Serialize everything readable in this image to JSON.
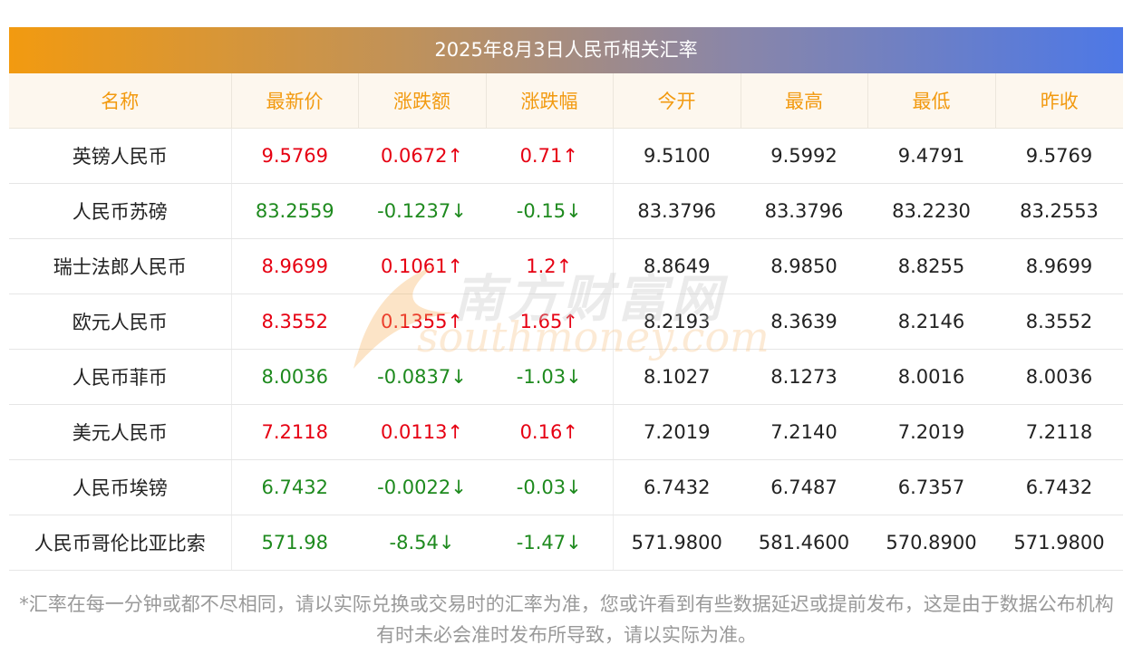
{
  "title": "2025年8月3日人民币相关汇率",
  "headers": [
    "名称",
    "最新价",
    "涨跌额",
    "涨跌幅",
    "今开",
    "最高",
    "最低",
    "昨收"
  ],
  "rows": [
    {
      "name": "英镑人民币",
      "latest": "9.5769",
      "change": "0.0672↑",
      "pct": "0.71↑",
      "open": "9.5100",
      "high": "9.5992",
      "low": "9.4791",
      "prev": "9.5769",
      "dir": "up"
    },
    {
      "name": "人民币苏磅",
      "latest": "83.2559",
      "change": "-0.1237↓",
      "pct": "-0.15↓",
      "open": "83.3796",
      "high": "83.3796",
      "low": "83.2230",
      "prev": "83.2553",
      "dir": "down"
    },
    {
      "name": "瑞士法郎人民币",
      "latest": "8.9699",
      "change": "0.1061↑",
      "pct": "1.2↑",
      "open": "8.8649",
      "high": "8.9850",
      "low": "8.8255",
      "prev": "8.9699",
      "dir": "up"
    },
    {
      "name": "欧元人民币",
      "latest": "8.3552",
      "change": "0.1355↑",
      "pct": "1.65↑",
      "open": "8.2193",
      "high": "8.3639",
      "low": "8.2146",
      "prev": "8.3552",
      "dir": "up"
    },
    {
      "name": "人民币菲币",
      "latest": "8.0036",
      "change": "-0.0837↓",
      "pct": "-1.03↓",
      "open": "8.1027",
      "high": "8.1273",
      "low": "8.0016",
      "prev": "8.0036",
      "dir": "down"
    },
    {
      "name": "美元人民币",
      "latest": "7.2118",
      "change": "0.0113↑",
      "pct": "0.16↑",
      "open": "7.2019",
      "high": "7.2140",
      "low": "7.2019",
      "prev": "7.2118",
      "dir": "up"
    },
    {
      "name": "人民币埃镑",
      "latest": "6.7432",
      "change": "-0.0022↓",
      "pct": "-0.03↓",
      "open": "6.7432",
      "high": "6.7487",
      "low": "6.7357",
      "prev": "6.7432",
      "dir": "down"
    },
    {
      "name": "人民币哥伦比亚比索",
      "latest": "571.98",
      "change": "-8.54↓",
      "pct": "-1.47↓",
      "open": "571.9800",
      "high": "581.4600",
      "low": "570.8900",
      "prev": "571.9800",
      "dir": "down"
    }
  ],
  "note": "*汇率在每一分钟或都不尽相同，请以实际兑换或交易时的汇率为准，您或许看到有些数据延迟或提前发布，这是由于数据公布机构有时未必会准时发布所导致，请以实际为准。",
  "watermark": {
    "cn": "南方财富网",
    "en": "southmoney.com"
  },
  "colors": {
    "up": "#e60012",
    "down": "#1e8a1e",
    "header": "#f29a10",
    "title_start": "#f29a10",
    "title_end": "#4d78e6"
  }
}
